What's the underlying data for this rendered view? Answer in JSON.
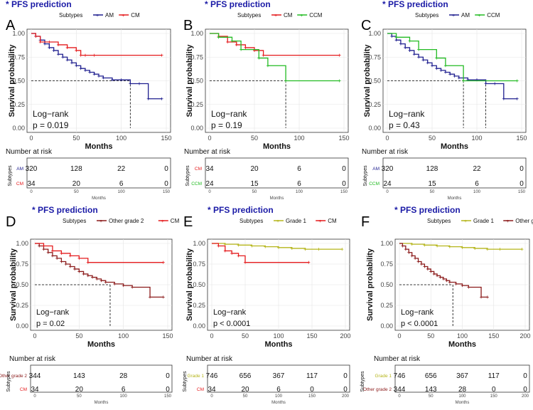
{
  "colors": {
    "AM": "#1f1f8f",
    "CM": "#e41a1c",
    "CCM": "#22bb22",
    "Other grade 2": "#8b1a1a",
    "Grade 1": "#b5b51a",
    "title": "#1a1aa6"
  },
  "chart_data": [
    {
      "type": "line",
      "panel": "A",
      "title": "* PFS prediction",
      "legend_title": "Subtypes",
      "legend_position": "top",
      "xlabel": "Months",
      "ylabel": "Survival probability",
      "xlim": [
        0,
        150
      ],
      "ylim": [
        0,
        1
      ],
      "xticks": [
        "0",
        "50",
        "100",
        "150"
      ],
      "yticks": [
        "0.00",
        "0.25",
        "0.50",
        "0.75",
        "1.00"
      ],
      "series": [
        {
          "name": "AM",
          "color": "#1f1f8f",
          "x": [
            0,
            5,
            10,
            15,
            20,
            25,
            30,
            35,
            40,
            45,
            50,
            55,
            60,
            65,
            70,
            75,
            80,
            90,
            100,
            110,
            120,
            130,
            145
          ],
          "y": [
            1.0,
            0.97,
            0.93,
            0.89,
            0.85,
            0.82,
            0.78,
            0.75,
            0.72,
            0.69,
            0.66,
            0.63,
            0.61,
            0.59,
            0.57,
            0.55,
            0.53,
            0.51,
            0.51,
            0.47,
            0.47,
            0.31,
            0.31
          ]
        },
        {
          "name": "CM",
          "color": "#e41a1c",
          "x": [
            0,
            5,
            10,
            20,
            30,
            40,
            50,
            55,
            60,
            70,
            145
          ],
          "y": [
            1.0,
            0.97,
            0.91,
            0.91,
            0.88,
            0.85,
            0.82,
            0.77,
            0.77,
            0.77,
            0.77
          ]
        }
      ],
      "median_lines": [
        110
      ],
      "annotation": [
        "Log−rank",
        "p = 0.019"
      ],
      "risk_table": {
        "title": "Number at risk",
        "ylabel": "Subtypes",
        "xlabel": "Months",
        "rows": [
          {
            "label": "AM",
            "values": [
              "320",
              "128",
              "22",
              "0"
            ]
          },
          {
            "label": "CM",
            "values": [
              "34",
              "20",
              "6",
              "0"
            ]
          }
        ]
      }
    },
    {
      "type": "line",
      "panel": "B",
      "title": "* PFS prediction",
      "legend_title": "Subtypes",
      "legend_position": "top",
      "xlabel": "Months",
      "ylabel": "Survival probability",
      "xlim": [
        0,
        150
      ],
      "ylim": [
        0,
        1
      ],
      "xticks": [
        "0",
        "50",
        "100",
        "150"
      ],
      "yticks": [
        "0.00",
        "0.25",
        "0.50",
        "0.75",
        "1.00"
      ],
      "series": [
        {
          "name": "CM",
          "color": "#e41a1c",
          "x": [
            0,
            10,
            20,
            30,
            40,
            50,
            60,
            145
          ],
          "y": [
            1.0,
            0.97,
            0.91,
            0.88,
            0.85,
            0.82,
            0.77,
            0.77
          ]
        },
        {
          "name": "CCM",
          "color": "#22bb22",
          "x": [
            0,
            10,
            25,
            35,
            55,
            65,
            85,
            145
          ],
          "y": [
            1.0,
            0.96,
            0.92,
            0.83,
            0.74,
            0.66,
            0.5,
            0.5
          ]
        }
      ],
      "median_lines": [
        85
      ],
      "annotation": [
        "Log−rank",
        "p = 0.19"
      ],
      "risk_table": {
        "title": "Number at risk",
        "ylabel": "Subtypes",
        "xlabel": "Months",
        "rows": [
          {
            "label": "CM",
            "values": [
              "34",
              "20",
              "6",
              "0"
            ]
          },
          {
            "label": "CCM",
            "values": [
              "24",
              "15",
              "6",
              "0"
            ]
          }
        ]
      }
    },
    {
      "type": "line",
      "panel": "C",
      "title": "* PFS prediction",
      "legend_title": "Subtypes",
      "legend_position": "top",
      "xlabel": "Months",
      "ylabel": "Survival probability",
      "xlim": [
        0,
        150
      ],
      "ylim": [
        0,
        1
      ],
      "xticks": [
        "0",
        "50",
        "100",
        "150"
      ],
      "yticks": [
        "0.00",
        "0.25",
        "0.50",
        "0.75",
        "1.00"
      ],
      "series": [
        {
          "name": "AM",
          "color": "#1f1f8f",
          "x": [
            0,
            5,
            10,
            15,
            20,
            25,
            30,
            35,
            40,
            45,
            50,
            55,
            60,
            65,
            70,
            75,
            80,
            90,
            100,
            110,
            120,
            130,
            145
          ],
          "y": [
            1.0,
            0.97,
            0.93,
            0.89,
            0.85,
            0.82,
            0.78,
            0.75,
            0.72,
            0.69,
            0.66,
            0.63,
            0.61,
            0.59,
            0.57,
            0.55,
            0.53,
            0.51,
            0.51,
            0.47,
            0.47,
            0.31,
            0.31
          ]
        },
        {
          "name": "CCM",
          "color": "#22bb22",
          "x": [
            0,
            10,
            25,
            35,
            55,
            65,
            85,
            145
          ],
          "y": [
            1.0,
            0.96,
            0.92,
            0.83,
            0.74,
            0.66,
            0.5,
            0.5
          ]
        }
      ],
      "median_lines": [
        85,
        110
      ],
      "annotation": [
        "Log−rank",
        "p = 0.43"
      ],
      "risk_table": {
        "title": "Number at risk",
        "ylabel": "Subtypes",
        "xlabel": "Months",
        "rows": [
          {
            "label": "AM",
            "values": [
              "320",
              "128",
              "22",
              "0"
            ]
          },
          {
            "label": "CCM",
            "values": [
              "24",
              "15",
              "6",
              "0"
            ]
          }
        ]
      }
    },
    {
      "type": "line",
      "panel": "D",
      "title": "* PFS prediction",
      "legend_title": "Subtypes",
      "legend_position": "top",
      "xlabel": "Months",
      "ylabel": "Survival probability",
      "xlim": [
        0,
        150
      ],
      "ylim": [
        0,
        1
      ],
      "xticks": [
        "0",
        "50",
        "100",
        "150"
      ],
      "yticks": [
        "0.00",
        "0.25",
        "0.50",
        "0.75",
        "1.00"
      ],
      "series": [
        {
          "name": "Other grade 2",
          "color": "#8b1a1a",
          "x": [
            0,
            5,
            10,
            15,
            20,
            25,
            30,
            35,
            40,
            45,
            50,
            55,
            60,
            65,
            70,
            75,
            80,
            90,
            100,
            110,
            130,
            145
          ],
          "y": [
            1.0,
            0.97,
            0.93,
            0.89,
            0.85,
            0.82,
            0.78,
            0.75,
            0.72,
            0.69,
            0.66,
            0.63,
            0.61,
            0.59,
            0.57,
            0.55,
            0.53,
            0.51,
            0.49,
            0.47,
            0.35,
            0.35
          ]
        },
        {
          "name": "CM",
          "color": "#e41a1c",
          "x": [
            0,
            10,
            20,
            30,
            40,
            50,
            60,
            145
          ],
          "y": [
            1.0,
            0.97,
            0.91,
            0.88,
            0.85,
            0.82,
            0.77,
            0.77
          ]
        }
      ],
      "median_lines": [
        85
      ],
      "annotation": [
        "Log−rank",
        "p = 0.02"
      ],
      "risk_table": {
        "title": "Number at risk",
        "ylabel": "Subtypes",
        "xlabel": "Months",
        "rows": [
          {
            "label": "Other grade 2",
            "values": [
              "344",
              "143",
              "28",
              "0"
            ]
          },
          {
            "label": "CM",
            "values": [
              "34",
              "20",
              "6",
              "0"
            ]
          }
        ]
      }
    },
    {
      "type": "line",
      "panel": "E",
      "title": "* PFS prediction",
      "legend_title": "Subtypes",
      "legend_position": "top",
      "xlabel": "Months",
      "ylabel": "Survival probability",
      "xlim": [
        0,
        200
      ],
      "ylim": [
        0,
        1
      ],
      "xticks": [
        "0",
        "50",
        "100",
        "150",
        "200"
      ],
      "yticks": [
        "0.00",
        "0.25",
        "0.50",
        "0.75",
        "1.00"
      ],
      "series": [
        {
          "name": "Grade 1",
          "color": "#b5b51a",
          "x": [
            0,
            20,
            40,
            60,
            80,
            100,
            120,
            140,
            160,
            195
          ],
          "y": [
            1.0,
            0.99,
            0.98,
            0.97,
            0.96,
            0.95,
            0.94,
            0.93,
            0.93,
            0.93
          ]
        },
        {
          "name": "CM",
          "color": "#e41a1c",
          "x": [
            0,
            10,
            20,
            30,
            40,
            50,
            145
          ],
          "y": [
            1.0,
            0.97,
            0.91,
            0.88,
            0.85,
            0.77,
            0.77
          ]
        }
      ],
      "median_lines": [],
      "annotation": [
        "Log−rank",
        "p < 0.0001"
      ],
      "risk_table": {
        "title": "Number at risk",
        "ylabel": "Subtypes",
        "xlabel": "Months",
        "rows": [
          {
            "label": "Grade 1",
            "values": [
              "746",
              "656",
              "367",
              "117",
              "0"
            ]
          },
          {
            "label": "CM",
            "values": [
              "34",
              "20",
              "6",
              "0",
              "0"
            ]
          }
        ]
      }
    },
    {
      "type": "line",
      "panel": "F",
      "title": "* PFS prediction",
      "legend_title": "Subtypes",
      "legend_position": "top",
      "xlabel": "Months",
      "ylabel": "Survival probability",
      "xlim": [
        0,
        200
      ],
      "ylim": [
        0,
        1
      ],
      "xticks": [
        "0",
        "50",
        "100",
        "150",
        "200"
      ],
      "yticks": [
        "0.00",
        "0.25",
        "0.50",
        "0.75",
        "1.00"
      ],
      "series": [
        {
          "name": "Grade 1",
          "color": "#b5b51a",
          "x": [
            0,
            20,
            40,
            60,
            80,
            100,
            120,
            140,
            160,
            195
          ],
          "y": [
            1.0,
            0.99,
            0.98,
            0.97,
            0.96,
            0.95,
            0.94,
            0.93,
            0.93,
            0.93
          ]
        },
        {
          "name": "Other grade 2",
          "color": "#8b1a1a",
          "x": [
            0,
            5,
            10,
            15,
            20,
            25,
            30,
            35,
            40,
            45,
            50,
            55,
            60,
            65,
            70,
            75,
            80,
            90,
            100,
            110,
            130,
            140
          ],
          "y": [
            1.0,
            0.97,
            0.93,
            0.89,
            0.85,
            0.82,
            0.78,
            0.75,
            0.72,
            0.69,
            0.66,
            0.63,
            0.61,
            0.59,
            0.57,
            0.55,
            0.53,
            0.51,
            0.49,
            0.47,
            0.35,
            0.35
          ]
        }
      ],
      "median_lines": [
        85
      ],
      "annotation": [
        "Log−rank",
        "p < 0.0001"
      ],
      "risk_table": {
        "title": "Number at risk",
        "ylabel": "Subtypes",
        "xlabel": "Months",
        "rows": [
          {
            "label": "Grade 1",
            "values": [
              "746",
              "656",
              "367",
              "117",
              "0"
            ]
          },
          {
            "label": "Other grade 2",
            "values": [
              "344",
              "143",
              "28",
              "0",
              "0"
            ]
          }
        ]
      }
    }
  ]
}
